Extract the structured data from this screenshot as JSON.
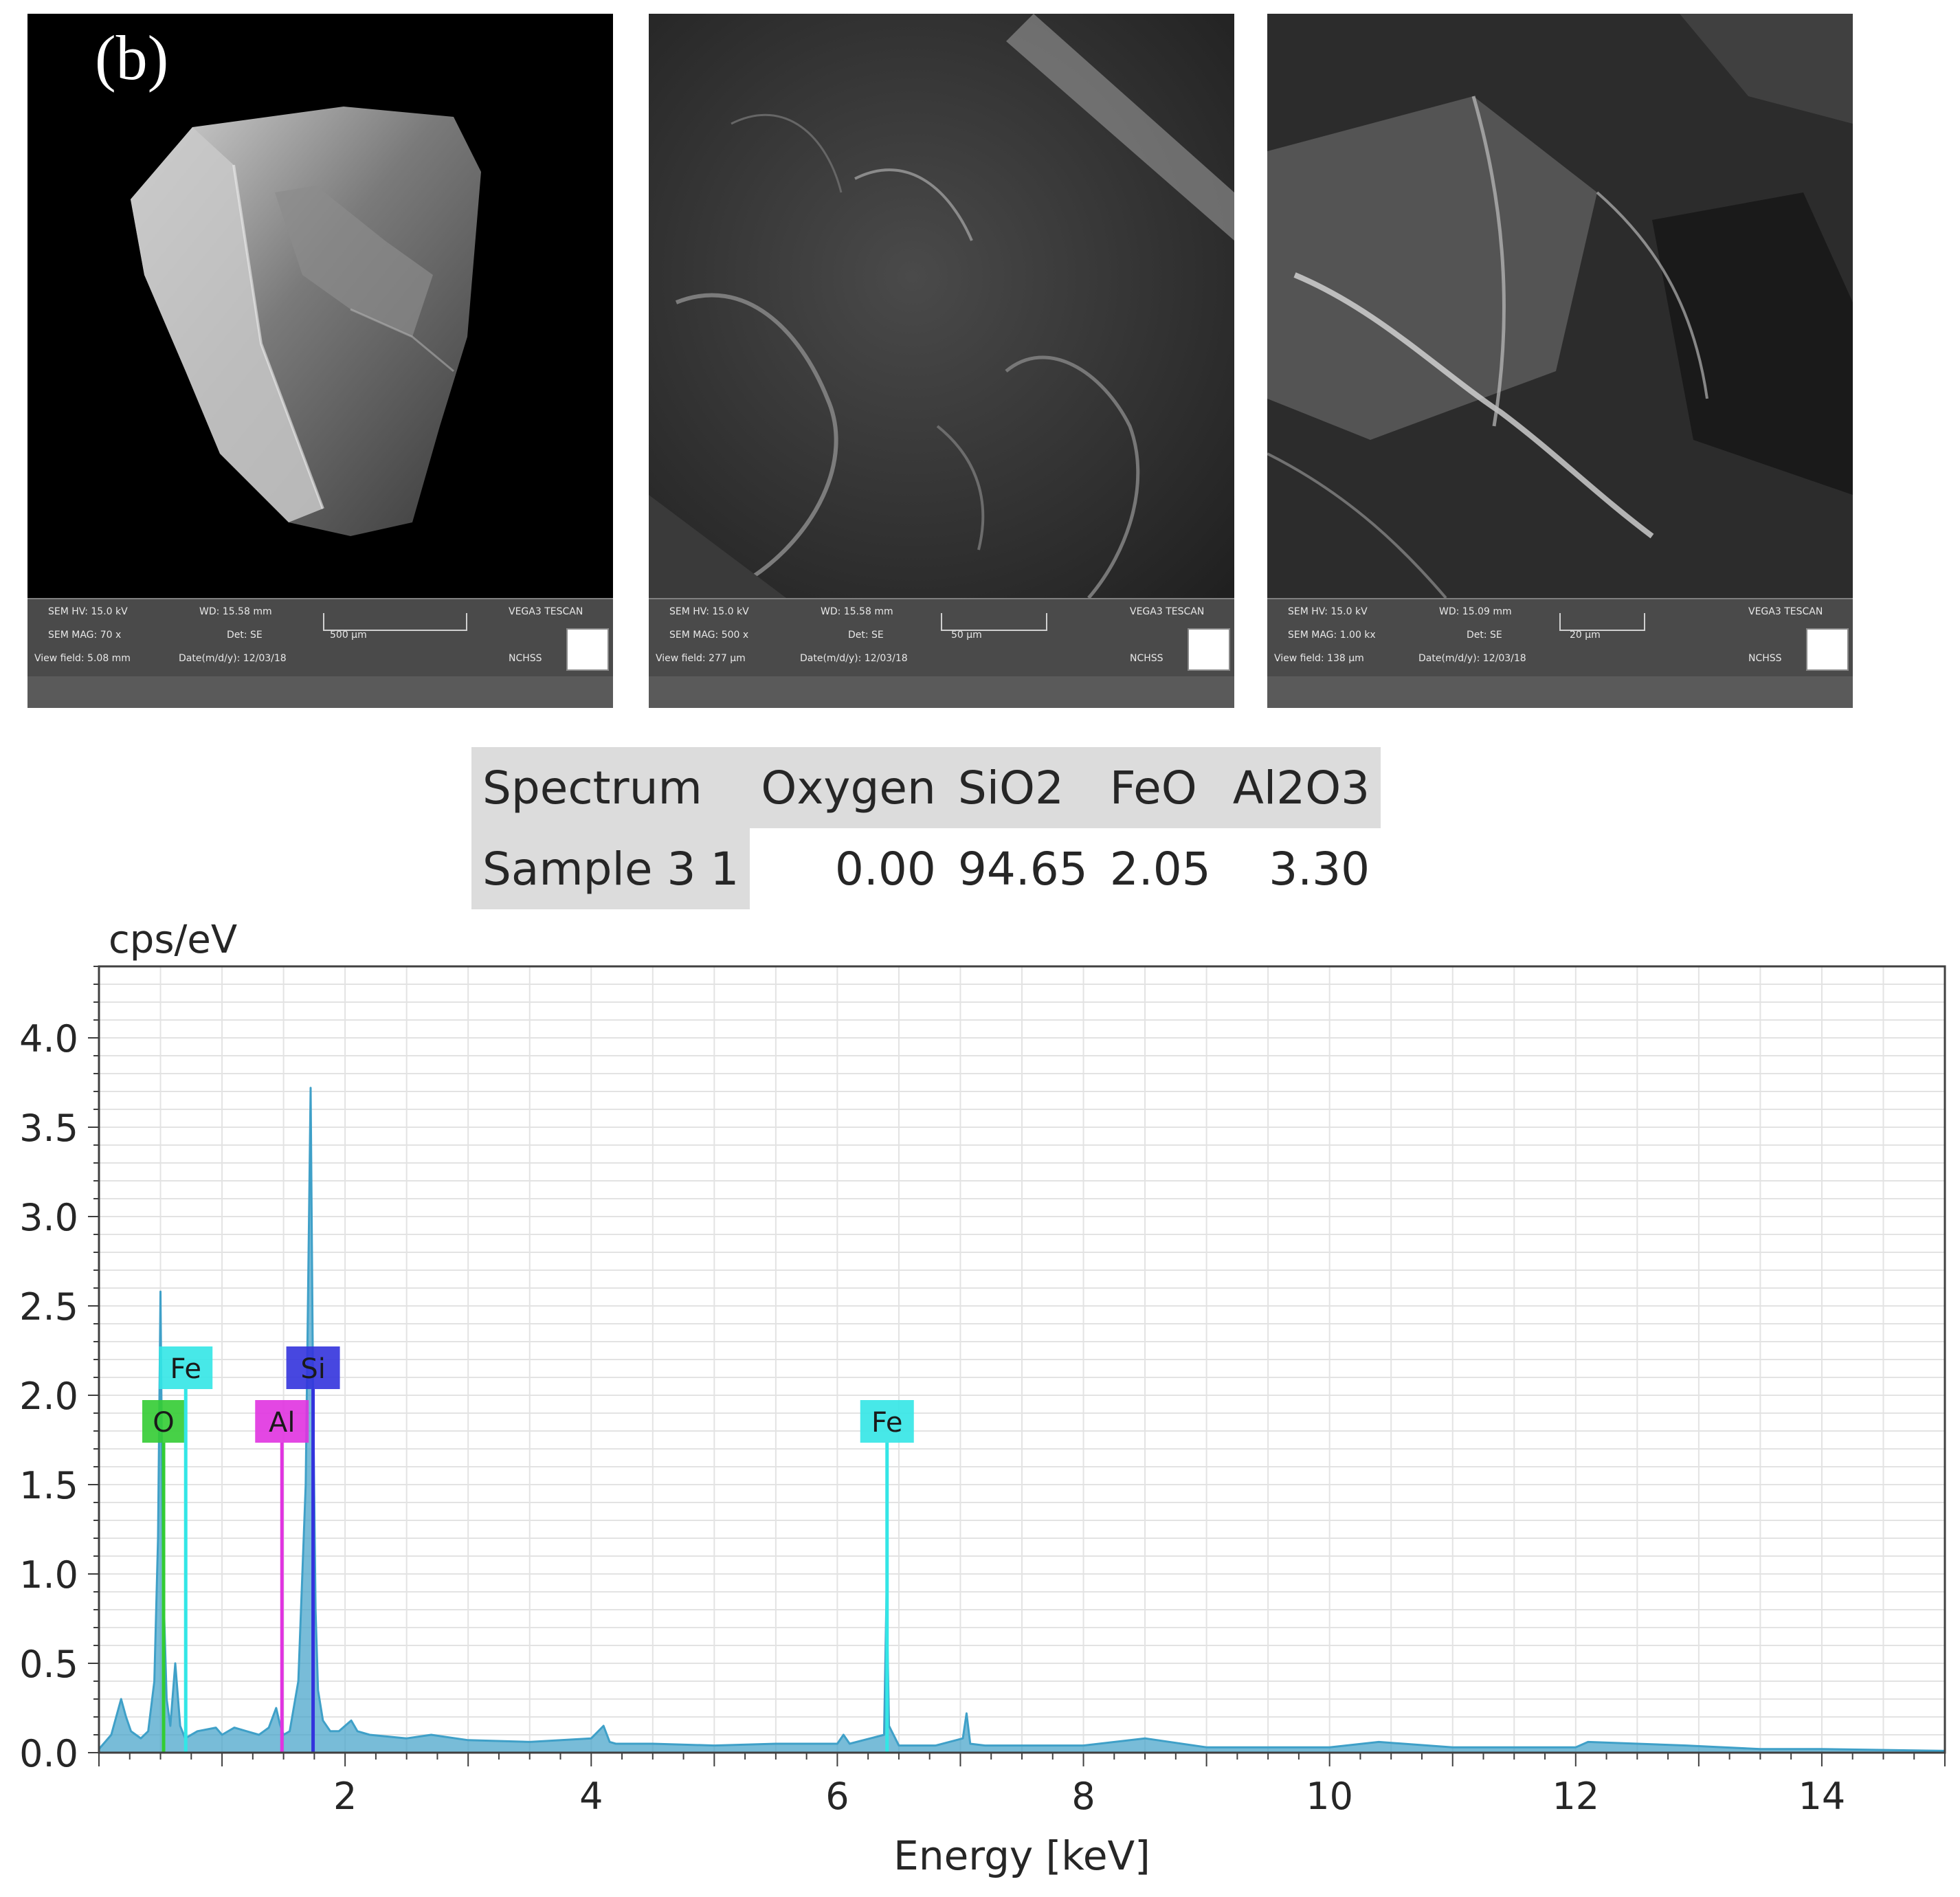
{
  "figure": {
    "panel_label": "(b)",
    "sem_images": [
      {
        "hv": "SEM HV: 15.0 kV",
        "wd": "WD: 15.58 mm",
        "mag": "SEM MAG: 70 x",
        "det": "Det: SE",
        "view_field": "View field: 5.08 mm",
        "date": "Date(m/d/y): 12/03/18",
        "scale": "500 μm",
        "brand": "VEGA3 TESCAN",
        "lab": "NCHSS"
      },
      {
        "hv": "SEM HV: 15.0 kV",
        "wd": "WD: 15.58 mm",
        "mag": "SEM MAG: 500 x",
        "det": "Det: SE",
        "view_field": "View field: 277 μm",
        "date": "Date(m/d/y): 12/03/18",
        "scale": "50 μm",
        "brand": "VEGA3 TESCAN",
        "lab": "NCHSS"
      },
      {
        "hv": "SEM HV: 15.0 kV",
        "wd": "WD: 15.09 mm",
        "mag": "SEM MAG: 1.00 kx",
        "det": "Det: SE",
        "view_field": "View field: 138 μm",
        "date": "Date(m/d/y): 12/03/18",
        "scale": "20 μm",
        "brand": "VEGA3 TESCAN",
        "lab": "NCHSS"
      }
    ]
  },
  "composition_table": {
    "headers": [
      "Spectrum",
      "Oxygen",
      "SiO2",
      "FeO",
      "Al2O3"
    ],
    "row": [
      "Sample 3 1",
      "0.00",
      "94.65",
      "2.05",
      "3.30"
    ]
  },
  "chart_data": {
    "type": "line",
    "title": "",
    "xlabel": "Energy [keV]",
    "ylabel": "cps/eV",
    "xlim": [
      0,
      15
    ],
    "ylim": [
      0,
      4.4
    ],
    "xticks": [
      "2",
      "4",
      "6",
      "8",
      "10",
      "12",
      "14"
    ],
    "yticks": [
      "0.0",
      "0.5",
      "1.0",
      "1.5",
      "2.0",
      "2.5",
      "3.0",
      "3.5",
      "4.0"
    ],
    "grid": true,
    "series": [
      {
        "name": "",
        "x": [
          0.0,
          0.1,
          0.18,
          0.22,
          0.26,
          0.3,
          0.34,
          0.4,
          0.45,
          0.48,
          0.5,
          0.52,
          0.55,
          0.58,
          0.62,
          0.66,
          0.7,
          0.8,
          0.95,
          1.0,
          1.1,
          1.2,
          1.3,
          1.38,
          1.44,
          1.47,
          1.5,
          1.55,
          1.62,
          1.68,
          1.72,
          1.74,
          1.76,
          1.78,
          1.82,
          1.88,
          1.95,
          2.05,
          2.1,
          2.2,
          2.5,
          2.7,
          3.0,
          3.5,
          4.0,
          4.1,
          4.15,
          4.2,
          4.5,
          5.0,
          5.5,
          6.0,
          6.05,
          6.1,
          6.38,
          6.4,
          6.42,
          6.5,
          6.8,
          7.02,
          7.05,
          7.08,
          7.2,
          7.5,
          8.0,
          8.5,
          9.0,
          10.0,
          10.4,
          11.0,
          12.0,
          12.1,
          12.9,
          13.5,
          14.0,
          15.0
        ],
        "y": [
          0.02,
          0.1,
          0.3,
          0.2,
          0.12,
          0.1,
          0.08,
          0.12,
          0.4,
          1.2,
          2.58,
          1.0,
          0.3,
          0.15,
          0.5,
          0.15,
          0.08,
          0.12,
          0.14,
          0.1,
          0.14,
          0.12,
          0.1,
          0.14,
          0.25,
          0.16,
          0.1,
          0.12,
          0.4,
          1.5,
          3.72,
          2.0,
          0.8,
          0.35,
          0.18,
          0.12,
          0.12,
          0.18,
          0.12,
          0.1,
          0.08,
          0.1,
          0.07,
          0.06,
          0.08,
          0.15,
          0.06,
          0.05,
          0.05,
          0.04,
          0.05,
          0.05,
          0.1,
          0.05,
          0.1,
          0.9,
          0.15,
          0.04,
          0.04,
          0.08,
          0.22,
          0.05,
          0.04,
          0.04,
          0.04,
          0.08,
          0.03,
          0.03,
          0.06,
          0.03,
          0.03,
          0.06,
          0.04,
          0.02,
          0.02,
          0.01
        ]
      }
    ],
    "peak_labels": [
      {
        "element": "O",
        "energy": 0.525,
        "color": "#33cc33"
      },
      {
        "element": "Fe",
        "energy": 0.705,
        "color": "#33e6e6"
      },
      {
        "element": "Al",
        "energy": 1.487,
        "color": "#e033e0"
      },
      {
        "element": "Si",
        "energy": 1.74,
        "color": "#3333dd"
      },
      {
        "element": "Fe",
        "energy": 6.404,
        "color": "#33e6e6"
      }
    ],
    "colors": {
      "spectrum": "#3fa0c8",
      "frame": "#404040",
      "grid": "#e3e3e3"
    }
  }
}
